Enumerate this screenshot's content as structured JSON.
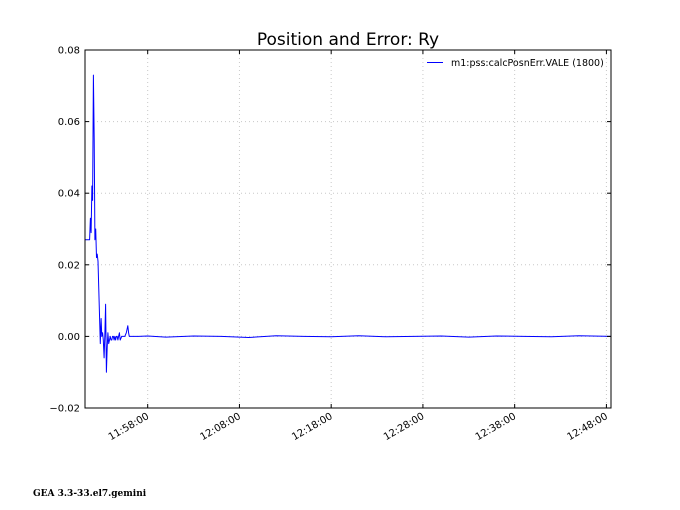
{
  "chart_data": {
    "type": "line",
    "title": "Position and Error:  Ry",
    "xlabel": "",
    "ylabel": "",
    "x_axis_type": "time",
    "xlim": [
      "11:51:10",
      "12:48:30"
    ],
    "ylim": [
      -0.02,
      0.08
    ],
    "x_ticks": [
      "11:58:00",
      "12:08:00",
      "12:18:00",
      "12:28:00",
      "12:38:00",
      "12:48:00"
    ],
    "y_ticks": [
      "-0.02",
      "0.00",
      "0.02",
      "0.04",
      "0.06",
      "0.08"
    ],
    "grid": true,
    "legend_position": "top-right",
    "series": [
      {
        "name": "m1:pss:calcPosnErr.VALE (1800)",
        "color": "#0000ff",
        "x": [
          "11:51:10",
          "11:51:30",
          "11:51:40",
          "11:51:45",
          "11:51:50",
          "11:51:55",
          "11:52:00",
          "11:52:05",
          "11:52:10",
          "11:52:15",
          "11:52:20",
          "11:52:25",
          "11:52:30",
          "11:52:35",
          "11:52:40",
          "11:52:45",
          "11:52:50",
          "11:52:55",
          "11:53:00",
          "11:53:05",
          "11:53:10",
          "11:53:15",
          "11:53:20",
          "11:53:25",
          "11:53:30",
          "11:53:35",
          "11:53:40",
          "11:53:45",
          "11:53:50",
          "11:53:55",
          "11:54:00",
          "11:54:05",
          "11:54:10",
          "11:54:15",
          "11:54:20",
          "11:54:25",
          "11:54:30",
          "11:54:35",
          "11:54:40",
          "11:54:45",
          "11:54:50",
          "11:54:55",
          "11:55:00",
          "11:55:10",
          "11:55:20",
          "11:55:30",
          "11:55:40",
          "11:55:50",
          "11:55:55",
          "11:56:00",
          "11:56:10",
          "11:56:20",
          "11:56:40",
          "11:57:00",
          "11:58:00",
          "12:00:00",
          "12:03:00",
          "12:06:00",
          "12:09:00",
          "12:12:00",
          "12:15:00",
          "12:18:00",
          "12:21:00",
          "12:24:00",
          "12:27:00",
          "12:30:00",
          "12:33:00",
          "12:36:00",
          "12:39:00",
          "12:42:00",
          "12:45:00",
          "12:48:30"
        ],
        "y": [
          0.027,
          0.027,
          0.027,
          0.033,
          0.029,
          0.042,
          0.038,
          0.073,
          0.055,
          0.027,
          0.03,
          0.022,
          0.023,
          0.021,
          0.013,
          0.006,
          -0.002,
          0.005,
          0.0,
          0.001,
          -0.001,
          -0.006,
          0.001,
          0.009,
          -0.01,
          -0.003,
          0.001,
          -0.002,
          -0.001,
          0.0,
          -0.001,
          -0.001,
          0.0,
          0.0,
          -0.001,
          0.0,
          -0.001,
          0.0,
          0.0,
          -0.001,
          0.0,
          0.001,
          -0.001,
          0.0,
          0.0,
          0.0,
          0.001,
          0.003,
          0.001,
          0.0,
          0.0,
          0.0,
          0.0,
          0.0,
          0.0001,
          -0.0002,
          0.0001,
          0.0,
          -0.0003,
          0.0002,
          0.0,
          -0.0001,
          0.0002,
          -0.0001,
          0.0,
          0.0001,
          -0.0002,
          0.0001,
          0.0,
          -0.0001,
          0.0002,
          0.0
        ]
      }
    ]
  },
  "footer": {
    "text": "GEA 3.3-33.el7.gemini"
  }
}
